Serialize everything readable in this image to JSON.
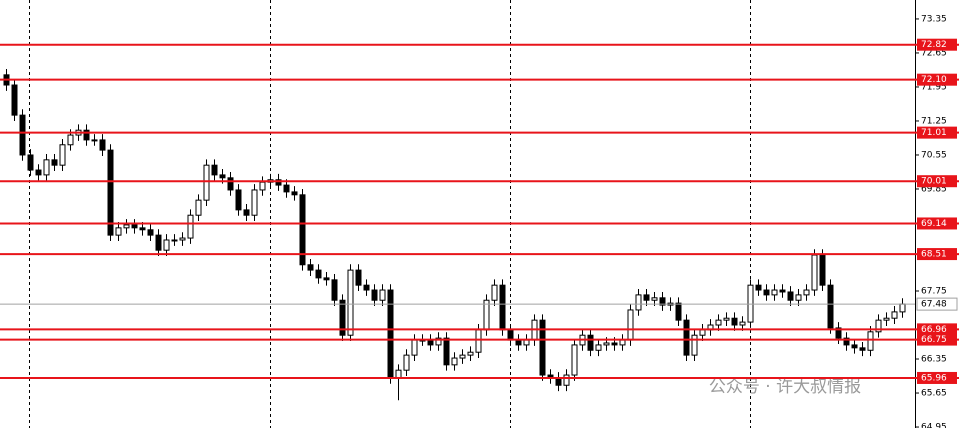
{
  "chart_data": {
    "type": "candlestick",
    "watermark": "公众号 · 许大叔情报",
    "open": [
      72.2,
      71.99,
      71.37,
      70.55,
      70.24,
      70.14,
      70.45,
      70.34,
      70.76,
      70.96,
      71.06,
      70.86,
      70.86,
      70.65,
      68.9,
      69.05,
      69.11,
      69.05,
      69.01,
      68.9,
      68.59,
      68.8,
      68.8,
      68.84,
      69.31,
      69.62,
      70.34,
      70.14,
      70.08,
      69.83,
      69.42,
      69.31,
      69.83,
      69.99,
      70.04,
      69.93,
      69.79,
      69.73,
      68.29,
      68.18,
      68.02,
      67.98,
      67.56,
      66.84,
      68.18,
      67.87,
      67.77,
      67.56,
      67.77,
      65.96,
      66.12,
      66.43,
      66.74,
      66.74,
      66.64,
      66.78,
      66.23,
      66.37,
      66.43,
      66.49,
      66.95,
      67.56,
      67.87,
      66.95,
      66.74,
      66.64,
      66.74,
      67.15,
      66.02,
      65.96,
      65.81,
      66.02,
      66.64,
      66.84,
      66.53,
      66.64,
      66.68,
      66.64,
      66.74,
      67.36,
      67.67,
      67.56,
      67.61,
      67.46,
      67.5,
      67.15,
      66.43,
      66.84,
      66.95,
      67.05,
      67.15,
      67.19,
      67.05,
      67.11,
      67.87,
      67.77,
      67.67,
      67.77,
      67.73,
      67.56,
      67.67,
      67.77,
      68.49,
      67.87,
      66.99,
      66.78,
      66.64,
      66.58,
      66.53,
      66.91,
      67.15,
      67.19,
      67.32
    ],
    "high": [
      72.32,
      72.11,
      71.49,
      70.67,
      70.36,
      70.57,
      70.57,
      70.88,
      71.08,
      71.18,
      71.18,
      70.98,
      70.98,
      70.77,
      69.17,
      69.23,
      69.23,
      69.17,
      69.13,
      69.02,
      68.92,
      68.92,
      68.96,
      69.43,
      69.74,
      70.46,
      70.46,
      70.26,
      70.2,
      69.95,
      69.54,
      69.95,
      70.11,
      70.16,
      70.16,
      70.05,
      69.91,
      69.85,
      68.41,
      68.3,
      68.14,
      68.1,
      67.68,
      68.3,
      68.3,
      67.99,
      67.89,
      67.89,
      67.89,
      66.24,
      66.55,
      66.86,
      66.86,
      66.86,
      66.9,
      66.9,
      66.49,
      66.55,
      66.61,
      67.07,
      67.68,
      67.99,
      67.99,
      67.07,
      66.86,
      66.86,
      67.27,
      67.27,
      66.14,
      66.08,
      66.14,
      66.76,
      66.96,
      66.96,
      66.76,
      66.8,
      66.8,
      66.86,
      67.48,
      67.79,
      67.79,
      67.73,
      67.73,
      67.62,
      67.62,
      67.27,
      66.96,
      67.07,
      67.17,
      67.27,
      67.31,
      67.31,
      67.23,
      67.99,
      67.99,
      67.89,
      67.89,
      67.89,
      67.85,
      67.79,
      67.89,
      68.61,
      68.61,
      67.99,
      67.11,
      66.9,
      66.76,
      66.7,
      67.03,
      67.27,
      67.31,
      67.44,
      67.6
    ],
    "low": [
      71.87,
      71.25,
      70.43,
      70.12,
      70.02,
      70.02,
      70.22,
      70.22,
      70.64,
      70.84,
      70.74,
      70.74,
      70.53,
      68.78,
      68.78,
      68.93,
      68.93,
      68.89,
      68.78,
      68.47,
      68.47,
      68.68,
      68.68,
      68.72,
      69.19,
      69.5,
      70.02,
      69.96,
      69.71,
      69.3,
      69.19,
      69.19,
      69.71,
      69.87,
      69.81,
      69.67,
      69.61,
      68.17,
      68.06,
      67.9,
      67.86,
      67.44,
      66.72,
      66.72,
      67.75,
      67.65,
      67.44,
      67.44,
      65.84,
      65.5,
      66.0,
      66.31,
      66.62,
      66.52,
      66.52,
      66.11,
      66.11,
      66.25,
      66.31,
      66.37,
      66.83,
      67.44,
      66.83,
      66.62,
      66.52,
      66.52,
      66.62,
      65.9,
      65.84,
      65.69,
      65.69,
      65.9,
      66.52,
      66.41,
      66.41,
      66.52,
      66.52,
      66.52,
      66.62,
      67.24,
      67.44,
      67.44,
      67.34,
      67.34,
      67.03,
      66.31,
      66.31,
      66.72,
      66.83,
      66.93,
      67.03,
      66.93,
      66.93,
      66.99,
      67.65,
      67.55,
      67.55,
      67.61,
      67.44,
      67.44,
      67.55,
      67.65,
      67.75,
      66.87,
      66.66,
      66.52,
      66.46,
      66.41,
      66.41,
      66.79,
      67.03,
      67.07,
      67.2
    ],
    "close": [
      71.99,
      71.37,
      70.55,
      70.24,
      70.14,
      70.45,
      70.34,
      70.76,
      70.96,
      71.06,
      70.86,
      70.86,
      70.65,
      68.9,
      69.05,
      69.11,
      69.05,
      69.01,
      68.9,
      68.59,
      68.8,
      68.8,
      68.84,
      69.31,
      69.62,
      70.34,
      70.14,
      70.08,
      69.83,
      69.42,
      69.31,
      69.83,
      69.99,
      70.04,
      69.93,
      69.79,
      69.73,
      68.29,
      68.18,
      68.02,
      67.98,
      67.56,
      66.84,
      68.18,
      67.87,
      67.77,
      67.56,
      67.77,
      65.96,
      66.12,
      66.43,
      66.74,
      66.74,
      66.64,
      66.78,
      66.23,
      66.37,
      66.43,
      66.49,
      66.95,
      67.56,
      67.87,
      66.95,
      66.74,
      66.64,
      66.74,
      67.15,
      66.02,
      65.96,
      65.81,
      66.02,
      66.64,
      66.84,
      66.53,
      66.64,
      66.68,
      66.64,
      66.74,
      67.36,
      67.67,
      67.56,
      67.61,
      67.46,
      67.5,
      67.15,
      66.43,
      66.84,
      66.95,
      67.05,
      67.15,
      67.19,
      67.05,
      67.11,
      67.87,
      67.77,
      67.67,
      67.77,
      67.73,
      67.56,
      67.67,
      67.77,
      68.49,
      67.87,
      66.99,
      66.78,
      66.64,
      66.58,
      66.53,
      66.91,
      67.15,
      67.19,
      67.32,
      67.48
    ],
    "up_color": "#ffffff",
    "down_color": "#000000",
    "ylim": [
      64.93,
      73.74
    ],
    "yticks": [
      73.35,
      72.65,
      71.95,
      71.25,
      70.55,
      69.85,
      67.75,
      66.35,
      65.65,
      64.95
    ],
    "levels": [
      {
        "value": 72.82,
        "label": "72.82"
      },
      {
        "value": 72.1,
        "label": "72.10"
      },
      {
        "value": 71.01,
        "label": "71.01"
      },
      {
        "value": 70.01,
        "label": "70.01"
      },
      {
        "value": 69.14,
        "label": "69.14"
      },
      {
        "value": 68.51,
        "label": "68.51"
      },
      {
        "value": 66.96,
        "label": "66.96"
      },
      {
        "value": 66.75,
        "label": "66.75"
      },
      {
        "value": 65.96,
        "label": "65.96"
      }
    ],
    "level_color": "#e8141a",
    "current_price": {
      "value": 67.48,
      "label": "67.48"
    },
    "current_price_color": "#a0a0a0"
  }
}
